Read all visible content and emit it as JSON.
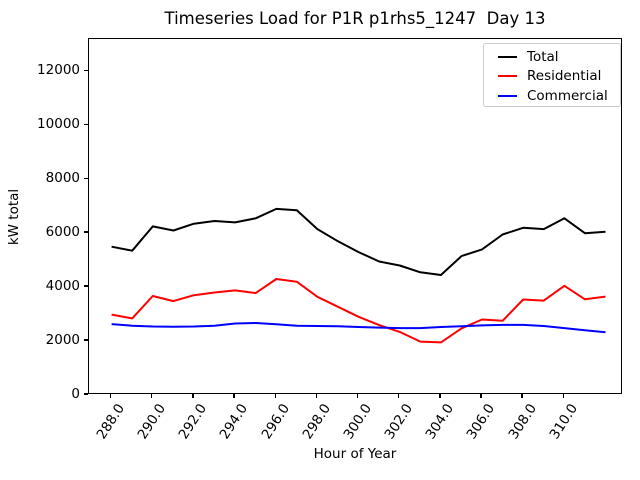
{
  "chart": {
    "title": "Timeseries Load for P1R p1rhs5_1247  Day 13",
    "xlabel": "Hour of Year",
    "ylabel": "kW total"
  },
  "chart_data": {
    "type": "line",
    "title": "Timeseries Load for P1R p1rhs5_1247  Day 13",
    "xlabel": "Hour of Year",
    "ylabel": "kW total",
    "grid": false,
    "legend_position": "upper right",
    "xlim": [
      286.9,
      312.85
    ],
    "ylim": [
      0,
      13200
    ],
    "xticks": {
      "values": [
        288,
        290,
        292,
        294,
        296,
        298,
        300,
        302,
        304,
        306,
        308,
        310
      ],
      "labels": [
        "288.0",
        "290.0",
        "292.0",
        "294.0",
        "296.0",
        "298.0",
        "300.0",
        "302.0",
        "304.0",
        "306.0",
        "308.0",
        "310.0"
      ]
    },
    "yticks": {
      "values": [
        0,
        2000,
        4000,
        6000,
        8000,
        10000,
        12000
      ],
      "labels": [
        "0",
        "2000",
        "4000",
        "6000",
        "8000",
        "10000",
        "12000"
      ]
    },
    "x": [
      288,
      289,
      290,
      291,
      292,
      293,
      294,
      295,
      296,
      297,
      298,
      299,
      300,
      301,
      302,
      303,
      304,
      305,
      306,
      307,
      308,
      309,
      310,
      311,
      312
    ],
    "series": [
      {
        "name": "Total",
        "color": "#000000",
        "values": [
          5500,
          5350,
          6250,
          6100,
          6350,
          6450,
          6400,
          6550,
          6900,
          6850,
          6150,
          5700,
          5300,
          4950,
          4800,
          4550,
          4450,
          5150,
          5400,
          5950,
          6200,
          6150,
          6550,
          6000,
          6050
        ]
      },
      {
        "name": "Residential",
        "color": "#ff0000",
        "values": [
          2980,
          2840,
          3670,
          3480,
          3700,
          3800,
          3880,
          3780,
          4300,
          4200,
          3640,
          3270,
          2900,
          2590,
          2340,
          1980,
          1950,
          2470,
          2800,
          2750,
          3540,
          3500,
          4050,
          3550,
          3650
        ]
      },
      {
        "name": "Commercial",
        "color": "#0000ff",
        "values": [
          2630,
          2570,
          2540,
          2530,
          2540,
          2570,
          2650,
          2670,
          2620,
          2570,
          2560,
          2550,
          2520,
          2500,
          2480,
          2480,
          2520,
          2550,
          2580,
          2600,
          2600,
          2560,
          2480,
          2400,
          2330
        ]
      }
    ]
  }
}
